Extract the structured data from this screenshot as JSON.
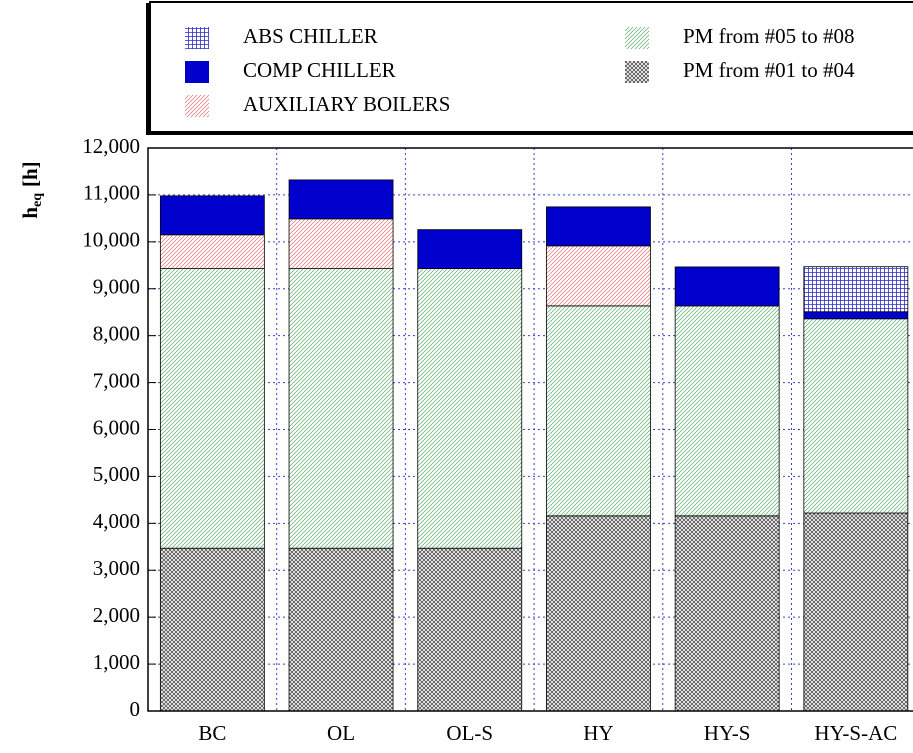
{
  "chart_data": {
    "type": "stacked_bar",
    "y_label": "h",
    "y_label_subscript": "eq",
    "y_label_unit": "[h]",
    "categories": [
      "BC",
      "OL",
      "OL-S",
      "HY",
      "HY-S",
      "HY-S-AC"
    ],
    "series": [
      {
        "name": "PM from #01 to #04",
        "color": "#555555",
        "label_color": "#000000",
        "pattern": "crosshatch",
        "values": [
          3470,
          3470,
          3470,
          4160,
          4160,
          4220
        ]
      },
      {
        "name": "PM from #05 to #08",
        "color": "#5aa86a",
        "label_color": "#1a7a1a",
        "pattern": "diagonal",
        "values": [
          5960,
          5960,
          5960,
          4475,
          4475,
          4140
        ]
      },
      {
        "name": "AUXILIARY BOILERS",
        "color": "#e07070",
        "label_color": "#e02020",
        "pattern": "diagonal",
        "values": [
          720,
          1060,
          0,
          1280,
          0,
          0
        ]
      },
      {
        "name": "COMP CHILLER",
        "color": "#0000cc",
        "label_color": "#0000cc",
        "pattern": "solid",
        "values": [
          830,
          830,
          830,
          830,
          830,
          150
        ]
      },
      {
        "name": "ABS CHILLER",
        "color": "#2a2acc",
        "label_color": "#0000cc",
        "pattern": "grid",
        "values": [
          0,
          0,
          0,
          0,
          0,
          960
        ]
      }
    ],
    "ylim": [
      0,
      12000
    ],
    "yticks": [
      0,
      {
        "value": 1000,
        "label": "1,000"
      },
      {
        "value": 2000,
        "label": "2,000"
      },
      {
        "value": 3000,
        "label": "3,000"
      },
      {
        "value": 4000,
        "label": "4,000"
      },
      {
        "value": 5000,
        "label": "5,000"
      },
      {
        "value": 6000,
        "label": "6,000"
      },
      {
        "value": 7000,
        "label": "7,000"
      },
      {
        "value": 8000,
        "label": "8,000"
      },
      {
        "value": 9000,
        "label": "9,000"
      },
      {
        "value": 10000,
        "label": "10,000"
      },
      {
        "value": 11000,
        "label": "11,000"
      },
      {
        "value": 12000,
        "label": "12,000"
      }
    ],
    "grid": true,
    "grid_color": "#3344cc"
  }
}
